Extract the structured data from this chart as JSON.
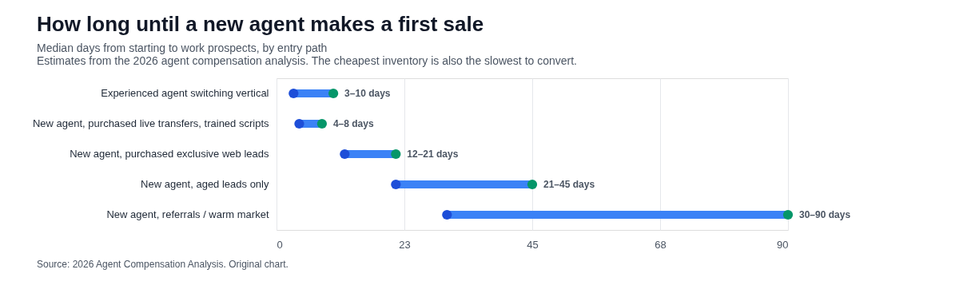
{
  "chart_data": {
    "type": "bar",
    "orientation": "horizontal",
    "title": "How long until a new agent makes a first sale",
    "subtitle": "Median days from starting to work prospects, by entry path",
    "annotations": [
      "Estimates from the 2026 agent compensation analysis. The cheapest inventory is also the slowest to convert.",
      "Source: 2026 Agent Compensation Analysis. Original chart."
    ],
    "categories": [
      "Experienced agent switching vertical",
      "New agent, purchased live transfers, trained scripts",
      "New agent, purchased exclusive web leads",
      "New agent, aged leads only",
      "New agent, referrals / warm market"
    ],
    "series": [
      {
        "type": "bar",
        "color": "#3b82f6",
        "base": [
          3,
          4,
          12,
          21,
          30
        ],
        "values": [
          7,
          4,
          9,
          24,
          60
        ],
        "value_labels": [
          "3–10 days",
          "4–8 days",
          "12–21 days",
          "21–45 days",
          "30–90 days"
        ]
      },
      {
        "type": "scatter",
        "color": "#1d4ed8",
        "values": [
          3,
          4,
          12,
          21,
          30
        ]
      },
      {
        "type": "scatter",
        "color": "#059669",
        "values": [
          10,
          8,
          21,
          45,
          90
        ]
      }
    ],
    "xlim": [
      0,
      90
    ],
    "xticks": [
      0,
      {
        "value": 22.5,
        "label": "23"
      },
      45,
      {
        "value": 67.5,
        "label": "68"
      },
      90
    ],
    "grid": "x",
    "marker": "circle"
  }
}
